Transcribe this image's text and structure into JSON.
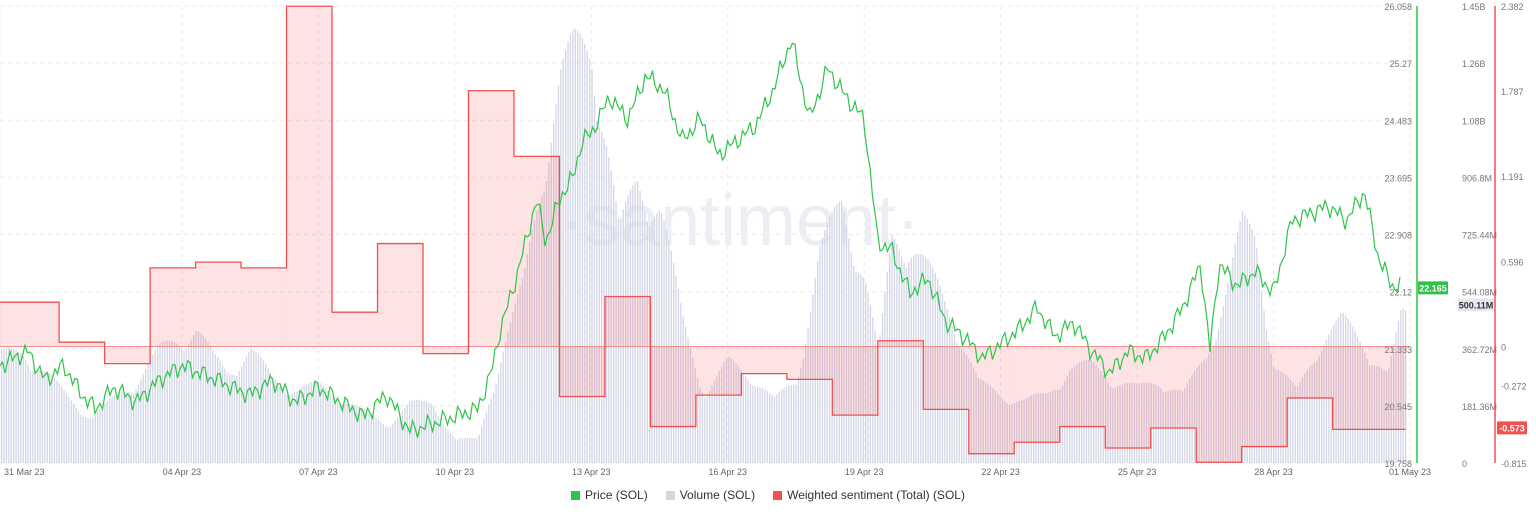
{
  "watermark": "·santiment·",
  "legend": [
    {
      "label": "Price (SOL)",
      "color": "#2ec44a"
    },
    {
      "label": "Volume (SOL)",
      "color": "#d4d6e8"
    },
    {
      "label": "Weighted sentiment (Total) (SOL)",
      "color": "#f05050"
    }
  ],
  "chart_data": {
    "type": "line",
    "x_axis": {
      "range": [
        "2023-03-31",
        "2023-05-01"
      ],
      "tick_labels": [
        "31 Mar 23",
        "04 Apr 23",
        "07 Apr 23",
        "10 Apr 23",
        "13 Apr 23",
        "16 Apr 23",
        "19 Apr 23",
        "22 Apr 23",
        "25 Apr 23",
        "28 Apr 23",
        "01 May 23"
      ],
      "tick_days": [
        0,
        4,
        7,
        10,
        13,
        16,
        19,
        22,
        25,
        28,
        31
      ]
    },
    "price_axis": {
      "label": "Price (SOL)",
      "range": [
        19.758,
        26.058
      ],
      "tick_labels": [
        "26.058",
        "25.27",
        "24.483",
        "23.695",
        "22.908",
        "22.12",
        "21.333",
        "20.545",
        "19.758"
      ],
      "current": "22.165",
      "color": "#2ec44a"
    },
    "volume_axis": {
      "label": "Volume (SOL)",
      "range": [
        0,
        1450000000
      ],
      "tick_labels": [
        "1.45B",
        "1.26B",
        "1.08B",
        "906.8M",
        "725.44M",
        "544.08M",
        "362.72M",
        "181.36M",
        "0"
      ],
      "current": "500.11M",
      "color": "#d4d6e8"
    },
    "sentiment_axis": {
      "label": "Weighted sentiment (Total) (SOL)",
      "range": [
        -0.815,
        2.382
      ],
      "tick_labels": [
        "2.382",
        "1.787",
        "1.191",
        "0.596",
        "0",
        "-0.272",
        "-0.573",
        "-0.815"
      ],
      "tick_values": [
        2.382,
        1.787,
        1.191,
        0.596,
        0,
        -0.272,
        -0.573,
        -0.815
      ],
      "current": "-0.573",
      "color": "#f05050"
    },
    "series": [
      {
        "name": "Price (SOL)",
        "x_days": [
          0,
          0.3,
          0.6,
          1,
          1.4,
          1.8,
          2.1,
          2.5,
          3,
          3.5,
          4,
          4.4,
          4.8,
          5.1,
          5.5,
          6,
          6.5,
          7,
          7.5,
          8,
          8.5,
          9,
          9.5,
          10,
          10.5,
          10.8,
          11,
          11.3,
          11.6,
          11.8,
          12,
          12.3,
          12.6,
          12.8,
          13,
          13.4,
          13.8,
          14.2,
          14.6,
          15,
          15.4,
          15.8,
          16.2,
          16.6,
          17,
          17.4,
          17.8,
          18.2,
          18.6,
          19,
          19.3,
          19.6,
          20,
          20.4,
          20.8,
          21.2,
          21.6,
          22,
          22.4,
          22.8,
          23.2,
          23.6,
          24,
          24.4,
          24.8,
          25.2,
          25.6,
          26,
          26.4,
          26.6,
          26.8,
          27.2,
          27.6,
          28,
          28.4,
          28.8,
          29.2,
          29.6,
          30,
          30.3,
          30.6,
          30.8
        ],
        "values": [
          21.1,
          21.2,
          21.3,
          20.9,
          21.1,
          20.7,
          20.5,
          20.8,
          20.6,
          20.9,
          21.1,
          21.0,
          20.9,
          20.8,
          20.7,
          20.9,
          20.6,
          20.8,
          20.6,
          20.4,
          20.7,
          20.2,
          20.3,
          20.4,
          20.5,
          21.0,
          21.6,
          22.2,
          22.9,
          23.4,
          22.8,
          23.4,
          23.7,
          24.2,
          24.3,
          24.8,
          24.5,
          25.1,
          24.9,
          24.2,
          24.5,
          24.0,
          24.2,
          24.4,
          24.9,
          25.6,
          24.5,
          25.2,
          24.8,
          24.5,
          22.8,
          22.7,
          22.1,
          22.3,
          21.7,
          21.5,
          21.2,
          21.4,
          21.6,
          21.9,
          21.5,
          21.7,
          21.3,
          21.0,
          21.3,
          21.2,
          21.5,
          21.9,
          22.5,
          21.3,
          22.5,
          22.2,
          22.4,
          22.1,
          23.1,
          23.2,
          23.3,
          23.1,
          23.5,
          22.6,
          22.2,
          22.2
        ]
      },
      {
        "name": "Volume (SOL)",
        "x_days": [
          0,
          0.5,
          1,
          1.5,
          2,
          2.5,
          3,
          3.5,
          3.9,
          4.3,
          4.7,
          5,
          5.5,
          6,
          6.5,
          7,
          7.5,
          8,
          8.5,
          9,
          9.5,
          10,
          10.5,
          11,
          11.5,
          12,
          12.3,
          12.6,
          13,
          13.3,
          13.6,
          14,
          14.5,
          15,
          15.5,
          16,
          16.5,
          17,
          17.5,
          18,
          18.5,
          19,
          19.3,
          19.6,
          20,
          20.5,
          21,
          21.5,
          22,
          22.5,
          23,
          23.5,
          24,
          24.5,
          25,
          25.5,
          26,
          26.5,
          27,
          27.3,
          27.6,
          28,
          28.5,
          29,
          29.5,
          30,
          30.5,
          30.8
        ],
        "values": [
          360,
          380,
          300,
          220,
          150,
          220,
          280,
          380,
          420,
          450,
          350,
          310,
          380,
          280,
          250,
          260,
          220,
          170,
          130,
          200,
          200,
          80,
          80,
          360,
          600,
          1080,
          1290,
          1380,
          1430,
          1120,
          760,
          960,
          860,
          480,
          230,
          340,
          300,
          210,
          280,
          700,
          880,
          630,
          360,
          760,
          750,
          620,
          470,
          270,
          230,
          210,
          230,
          320,
          330,
          280,
          250,
          280,
          230,
          360,
          610,
          800,
          760,
          330,
          240,
          410,
          480,
          400,
          290,
          500
        ]
      },
      {
        "name": "Weighted sentiment (Total) (SOL)",
        "x_days": [
          0,
          1.3,
          2.3,
          3.3,
          4.3,
          5.3,
          6.3,
          7.3,
          8.3,
          9.3,
          10.3,
          11.3,
          12.3,
          13.3,
          14.3,
          15.3,
          16.3,
          17.3,
          18.3,
          19.3,
          20.3,
          21.3,
          22.3,
          23.3,
          24.3,
          25.3,
          26.3,
          27.3,
          28.3,
          29.3,
          30.3
        ],
        "values": [
          0.31,
          0.03,
          -0.12,
          0.55,
          0.59,
          0.55,
          2.38,
          0.24,
          0.72,
          -0.05,
          1.79,
          1.33,
          -0.35,
          0.35,
          -0.56,
          -0.34,
          -0.19,
          -0.23,
          -0.48,
          0.04,
          -0.44,
          -0.75,
          -0.67,
          -0.56,
          -0.71,
          -0.57,
          -0.81,
          -0.7,
          -0.36,
          -0.58,
          -0.58
        ]
      }
    ],
    "grid": true
  }
}
